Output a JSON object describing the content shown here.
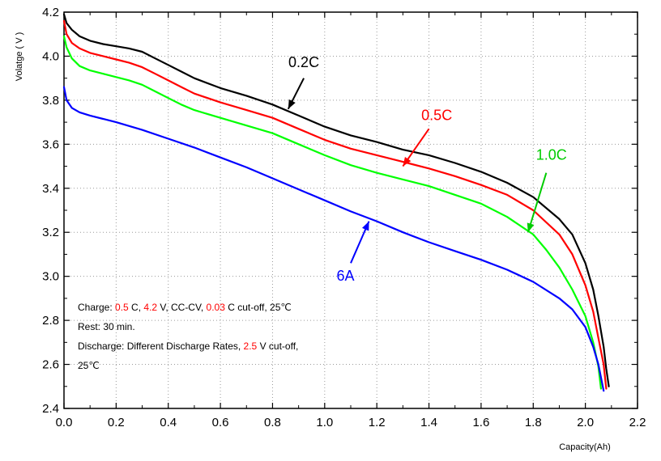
{
  "chart_data": {
    "type": "line",
    "title": "",
    "xlabel": "Capacity(Ah)",
    "ylabel": "Volatge ( V )",
    "xlim": [
      0.0,
      2.2
    ],
    "ylim": [
      2.4,
      4.2
    ],
    "x_ticks": [
      "0.0",
      "0.2",
      "0.4",
      "0.6",
      "0.8",
      "1.0",
      "1.2",
      "1.4",
      "1.6",
      "1.8",
      "2.0",
      "2.2"
    ],
    "y_ticks": [
      "2.4",
      "2.6",
      "2.8",
      "3.0",
      "3.2",
      "3.4",
      "3.6",
      "3.8",
      "4.0",
      "4.2"
    ],
    "grid": true,
    "series": [
      {
        "name": "0.2C",
        "color": "#000000",
        "points": [
          [
            0.0,
            4.19
          ],
          [
            0.01,
            4.15
          ],
          [
            0.03,
            4.12
          ],
          [
            0.06,
            4.09
          ],
          [
            0.1,
            4.07
          ],
          [
            0.15,
            4.055
          ],
          [
            0.2,
            4.045
          ],
          [
            0.25,
            4.035
          ],
          [
            0.3,
            4.02
          ],
          [
            0.35,
            3.99
          ],
          [
            0.4,
            3.96
          ],
          [
            0.45,
            3.93
          ],
          [
            0.5,
            3.9
          ],
          [
            0.6,
            3.855
          ],
          [
            0.7,
            3.82
          ],
          [
            0.8,
            3.78
          ],
          [
            0.9,
            3.73
          ],
          [
            1.0,
            3.68
          ],
          [
            1.1,
            3.64
          ],
          [
            1.2,
            3.61
          ],
          [
            1.3,
            3.575
          ],
          [
            1.4,
            3.55
          ],
          [
            1.5,
            3.515
          ],
          [
            1.6,
            3.475
          ],
          [
            1.7,
            3.425
          ],
          [
            1.8,
            3.36
          ],
          [
            1.9,
            3.26
          ],
          [
            1.95,
            3.19
          ],
          [
            2.0,
            3.06
          ],
          [
            2.03,
            2.94
          ],
          [
            2.05,
            2.82
          ],
          [
            2.07,
            2.68
          ],
          [
            2.08,
            2.58
          ],
          [
            2.09,
            2.5
          ]
        ]
      },
      {
        "name": "0.5C",
        "color": "#ff0000",
        "points": [
          [
            0.0,
            4.16
          ],
          [
            0.01,
            4.1
          ],
          [
            0.03,
            4.06
          ],
          [
            0.06,
            4.035
          ],
          [
            0.1,
            4.015
          ],
          [
            0.15,
            4.0
          ],
          [
            0.2,
            3.985
          ],
          [
            0.25,
            3.97
          ],
          [
            0.3,
            3.95
          ],
          [
            0.35,
            3.92
          ],
          [
            0.4,
            3.89
          ],
          [
            0.45,
            3.86
          ],
          [
            0.5,
            3.83
          ],
          [
            0.6,
            3.79
          ],
          [
            0.7,
            3.755
          ],
          [
            0.8,
            3.72
          ],
          [
            0.9,
            3.67
          ],
          [
            1.0,
            3.62
          ],
          [
            1.1,
            3.58
          ],
          [
            1.2,
            3.55
          ],
          [
            1.3,
            3.52
          ],
          [
            1.4,
            3.49
          ],
          [
            1.5,
            3.455
          ],
          [
            1.6,
            3.415
          ],
          [
            1.7,
            3.37
          ],
          [
            1.8,
            3.3
          ],
          [
            1.9,
            3.19
          ],
          [
            1.95,
            3.1
          ],
          [
            2.0,
            2.96
          ],
          [
            2.03,
            2.84
          ],
          [
            2.05,
            2.72
          ],
          [
            2.07,
            2.6
          ],
          [
            2.08,
            2.49
          ]
        ]
      },
      {
        "name": "1.0C",
        "color": "#00ff00",
        "points": [
          [
            0.0,
            4.09
          ],
          [
            0.01,
            4.04
          ],
          [
            0.03,
            3.99
          ],
          [
            0.06,
            3.955
          ],
          [
            0.1,
            3.935
          ],
          [
            0.15,
            3.92
          ],
          [
            0.2,
            3.905
          ],
          [
            0.25,
            3.89
          ],
          [
            0.3,
            3.87
          ],
          [
            0.35,
            3.84
          ],
          [
            0.4,
            3.81
          ],
          [
            0.45,
            3.78
          ],
          [
            0.5,
            3.755
          ],
          [
            0.6,
            3.72
          ],
          [
            0.7,
            3.685
          ],
          [
            0.8,
            3.65
          ],
          [
            0.9,
            3.6
          ],
          [
            1.0,
            3.55
          ],
          [
            1.1,
            3.505
          ],
          [
            1.2,
            3.47
          ],
          [
            1.3,
            3.44
          ],
          [
            1.4,
            3.41
          ],
          [
            1.5,
            3.37
          ],
          [
            1.6,
            3.33
          ],
          [
            1.7,
            3.27
          ],
          [
            1.8,
            3.19
          ],
          [
            1.85,
            3.12
          ],
          [
            1.9,
            3.04
          ],
          [
            1.95,
            2.94
          ],
          [
            2.0,
            2.82
          ],
          [
            2.03,
            2.7
          ],
          [
            2.05,
            2.59
          ],
          [
            2.06,
            2.49
          ]
        ]
      },
      {
        "name": "6A",
        "color": "#0000ff",
        "points": [
          [
            0.0,
            3.86
          ],
          [
            0.01,
            3.8
          ],
          [
            0.03,
            3.765
          ],
          [
            0.06,
            3.745
          ],
          [
            0.1,
            3.73
          ],
          [
            0.2,
            3.7
          ],
          [
            0.3,
            3.665
          ],
          [
            0.4,
            3.625
          ],
          [
            0.5,
            3.585
          ],
          [
            0.6,
            3.54
          ],
          [
            0.7,
            3.495
          ],
          [
            0.8,
            3.445
          ],
          [
            0.9,
            3.395
          ],
          [
            1.0,
            3.345
          ],
          [
            1.1,
            3.295
          ],
          [
            1.2,
            3.25
          ],
          [
            1.3,
            3.2
          ],
          [
            1.4,
            3.155
          ],
          [
            1.5,
            3.115
          ],
          [
            1.6,
            3.075
          ],
          [
            1.7,
            3.03
          ],
          [
            1.8,
            2.975
          ],
          [
            1.9,
            2.9
          ],
          [
            1.95,
            2.85
          ],
          [
            2.0,
            2.77
          ],
          [
            2.03,
            2.68
          ],
          [
            2.05,
            2.6
          ],
          [
            2.07,
            2.48
          ]
        ]
      }
    ],
    "annotations": [
      {
        "label": "0.2C",
        "color": "#000000",
        "text_at": [
          0.92,
          3.95
        ],
        "arrow_from": [
          0.92,
          3.9
        ],
        "arrow_to": [
          0.86,
          3.76
        ]
      },
      {
        "label": "0.5C",
        "color": "#ff0000",
        "text_at": [
          1.43,
          3.71
        ],
        "arrow_from": [
          1.4,
          3.67
        ],
        "arrow_to": [
          1.3,
          3.5
        ]
      },
      {
        "label": "1.0C",
        "color": "#00cc00",
        "text_at": [
          1.87,
          3.53
        ],
        "arrow_from": [
          1.85,
          3.47
        ],
        "arrow_to": [
          1.78,
          3.2
        ]
      },
      {
        "label": "6A",
        "color": "#0000ff",
        "text_at": [
          1.08,
          2.98
        ],
        "arrow_from": [
          1.1,
          3.06
        ],
        "arrow_to": [
          1.17,
          3.25
        ]
      }
    ],
    "notes": [
      [
        {
          "t": "Charge: "
        },
        {
          "t": "0.5",
          "red": true
        },
        {
          "t": " C, "
        },
        {
          "t": "4.2",
          "red": true
        },
        {
          "t": " V, CC-CV, "
        },
        {
          "t": "0.03",
          "red": true
        },
        {
          "t": " C cut-off, 25℃"
        }
      ],
      [
        {
          "t": "Rest: 30  min."
        }
      ],
      [
        {
          "t": "Discharge: Different Discharge Rates, "
        },
        {
          "t": "2.5",
          "red": true
        },
        {
          "t": " V cut-off,"
        }
      ],
      [
        {
          "t": "25℃"
        }
      ]
    ]
  }
}
